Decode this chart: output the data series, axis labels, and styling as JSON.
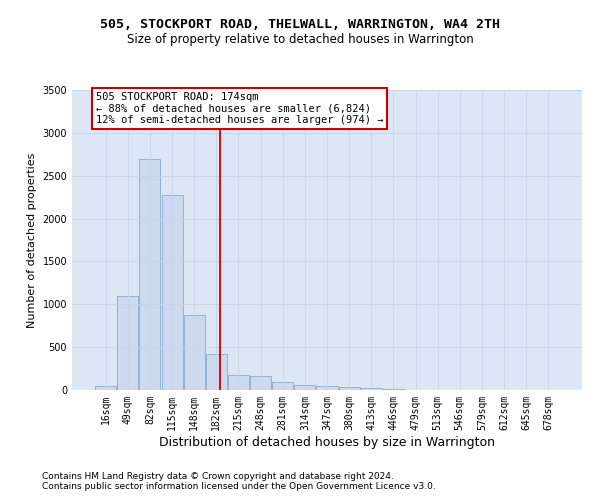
{
  "title1": "505, STOCKPORT ROAD, THELWALL, WARRINGTON, WA4 2TH",
  "title2": "Size of property relative to detached houses in Warrington",
  "xlabel": "Distribution of detached houses by size in Warrington",
  "ylabel": "Number of detached properties",
  "bar_color": "#ccd9ef",
  "bar_edge_color": "#7aa0cc",
  "bar_categories": [
    "16sqm",
    "49sqm",
    "82sqm",
    "115sqm",
    "148sqm",
    "182sqm",
    "215sqm",
    "248sqm",
    "281sqm",
    "314sqm",
    "347sqm",
    "380sqm",
    "413sqm",
    "446sqm",
    "479sqm",
    "513sqm",
    "546sqm",
    "579sqm",
    "612sqm",
    "645sqm",
    "678sqm"
  ],
  "bar_values": [
    50,
    1100,
    2700,
    2280,
    880,
    420,
    170,
    160,
    90,
    60,
    50,
    30,
    20,
    10,
    5,
    5,
    3,
    2,
    1,
    1,
    1
  ],
  "vline_x": 5.18,
  "vline_color": "#cc0000",
  "annotation_text": "505 STOCKPORT ROAD: 174sqm\n← 88% of detached houses are smaller (6,824)\n12% of semi-detached houses are larger (974) →",
  "annotation_box_color": "#cc0000",
  "ylim": [
    0,
    3500
  ],
  "yticks": [
    0,
    500,
    1000,
    1500,
    2000,
    2500,
    3000,
    3500
  ],
  "grid_color": "#c8d4e8",
  "bg_color": "#dce6f5",
  "footnote1": "Contains HM Land Registry data © Crown copyright and database right 2024.",
  "footnote2": "Contains public sector information licensed under the Open Government Licence v3.0.",
  "title1_fontsize": 9.5,
  "title2_fontsize": 8.5,
  "xlabel_fontsize": 9,
  "ylabel_fontsize": 8,
  "tick_fontsize": 7,
  "annotation_fontsize": 7.5,
  "footnote_fontsize": 6.5
}
